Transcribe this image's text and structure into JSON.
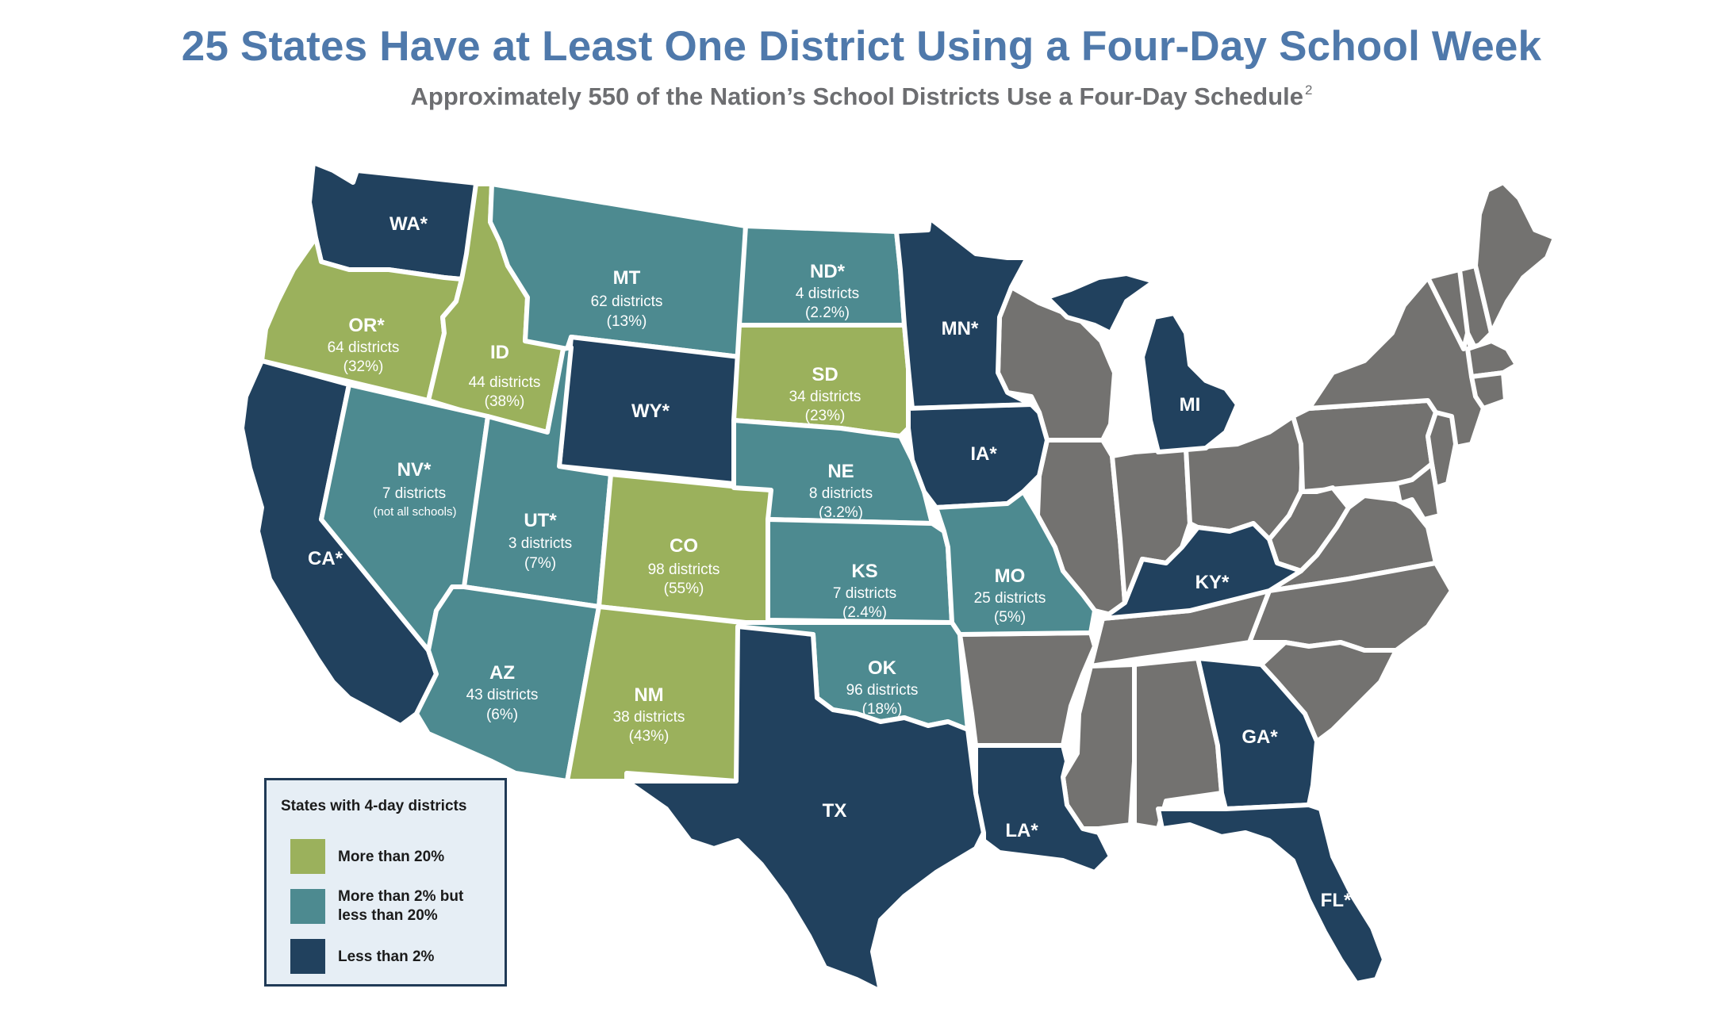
{
  "title": "25 States Have at Least One District Using a Four-Day School Week",
  "subtitle": "Approximately 550 of the Nation’s School Districts Use a Four-Day Schedule",
  "subtitle_footnote": "2",
  "colors": {
    "more_than_20": "#9bb15c",
    "between_2_and_20": "#4d8a90",
    "less_than_2": "#21415e",
    "none": "#737270",
    "border": "#ffffff"
  },
  "legend": {
    "title": "States with 4-day districts",
    "items": [
      {
        "label": "More than 20%",
        "color": "#9bb15c"
      },
      {
        "label": "More than 2% but less than 20%",
        "color": "#4d8a90"
      },
      {
        "label": "Less than 2%",
        "color": "#21415e"
      }
    ]
  },
  "states": {
    "WA": {
      "code": "WA*",
      "category": "less_than_2"
    },
    "OR": {
      "code": "OR*",
      "districts": "64 districts",
      "share": "(32%)",
      "category": "more_than_20"
    },
    "CA": {
      "code": "CA*",
      "category": "less_than_2"
    },
    "ID": {
      "code": "ID",
      "districts": "44 districts",
      "share": "(38%)",
      "category": "more_than_20"
    },
    "NV": {
      "code": "NV*",
      "districts": "7 districts",
      "share": "(not all schools)",
      "category": "between_2_and_20"
    },
    "MT": {
      "code": "MT",
      "districts": "62 districts",
      "share": "(13%)",
      "category": "between_2_and_20"
    },
    "WY": {
      "code": "WY*",
      "category": "less_than_2"
    },
    "UT": {
      "code": "UT*",
      "districts": "3 districts",
      "share": "(7%)",
      "category": "between_2_and_20"
    },
    "CO": {
      "code": "CO",
      "districts": "98 districts",
      "share": "(55%)",
      "category": "more_than_20"
    },
    "AZ": {
      "code": "AZ",
      "districts": "43 districts",
      "share": "(6%)",
      "category": "between_2_and_20"
    },
    "NM": {
      "code": "NM",
      "districts": "38 districts",
      "share": "(43%)",
      "category": "more_than_20"
    },
    "ND": {
      "code": "ND*",
      "districts": "4 districts",
      "share": "(2.2%)",
      "category": "between_2_and_20"
    },
    "SD": {
      "code": "SD",
      "districts": "34 districts",
      "share": "(23%)",
      "category": "more_than_20"
    },
    "NE": {
      "code": "NE",
      "districts": "8 districts",
      "share": "(3.2%)",
      "category": "between_2_and_20"
    },
    "KS": {
      "code": "KS",
      "districts": "7 districts",
      "share": "(2.4%)",
      "category": "between_2_and_20"
    },
    "OK": {
      "code": "OK",
      "districts": "96 districts",
      "share": "(18%)",
      "category": "between_2_and_20"
    },
    "TX": {
      "code": "TX",
      "category": "less_than_2"
    },
    "MN": {
      "code": "MN*",
      "category": "less_than_2"
    },
    "IA": {
      "code": "IA*",
      "category": "less_than_2"
    },
    "MO": {
      "code": "MO",
      "districts": "25 districts",
      "share": "(5%)",
      "category": "between_2_and_20"
    },
    "LA": {
      "code": "LA*",
      "category": "less_than_2"
    },
    "MI": {
      "code": "MI",
      "category": "less_than_2"
    },
    "KY": {
      "code": "KY*",
      "category": "less_than_2"
    },
    "GA": {
      "code": "GA*",
      "category": "less_than_2"
    },
    "FL": {
      "code": "FL*",
      "category": "less_than_2"
    }
  }
}
